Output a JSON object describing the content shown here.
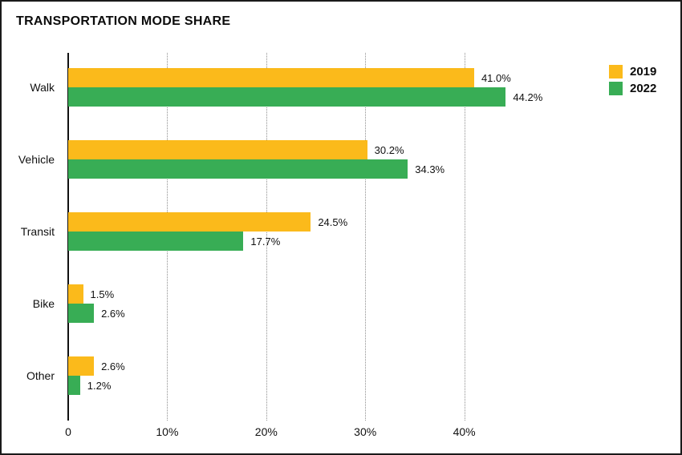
{
  "title": "TRANSPORTATION MODE SHARE",
  "colors": {
    "series_2019": "#FBBA1B",
    "series_2022": "#38AD55",
    "axis": "#111111",
    "gridline": "#8f8f8f",
    "frame_border": "#1a1a1a",
    "background": "#ffffff"
  },
  "legend": {
    "position": "top-right",
    "items": [
      {
        "label": "2019",
        "color": "#FBBA1B"
      },
      {
        "label": "2022",
        "color": "#38AD55"
      }
    ]
  },
  "chart_data": {
    "type": "bar",
    "orientation": "horizontal",
    "title": "TRANSPORTATION MODE SHARE",
    "xlabel": "",
    "ylabel": "",
    "categories": [
      "Walk",
      "Vehicle",
      "Transit",
      "Bike",
      "Other"
    ],
    "series": [
      {
        "name": "2019",
        "color": "#FBBA1B",
        "values": [
          41.0,
          30.2,
          24.5,
          1.5,
          2.6
        ],
        "labels": [
          "41.0%",
          "30.2%",
          "24.5%",
          "1.5%",
          "2.6%"
        ]
      },
      {
        "name": "2022",
        "color": "#38AD55",
        "values": [
          44.2,
          34.3,
          17.7,
          2.6,
          1.2
        ],
        "labels": [
          "44.2%",
          "34.3%",
          "17.7%",
          "2.6%",
          "1.2%"
        ]
      }
    ],
    "xlim": [
      0,
      45
    ],
    "x_ticks": [
      0,
      10,
      20,
      30,
      40
    ],
    "x_tick_labels": [
      "0",
      "10%",
      "20%",
      "30%",
      "40%"
    ],
    "grid": "dotted-vertical",
    "legend_position": "top-right",
    "value_labels": "outside-right"
  }
}
